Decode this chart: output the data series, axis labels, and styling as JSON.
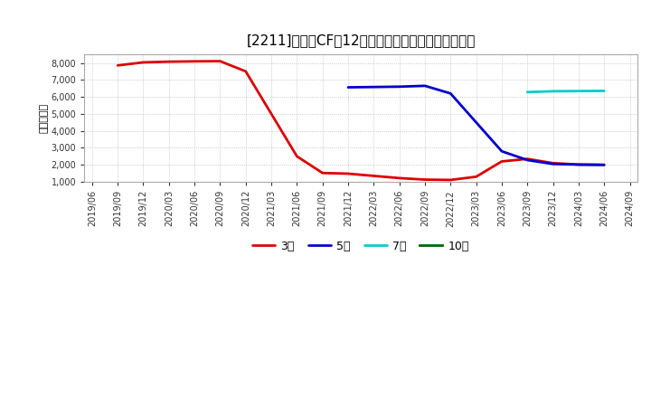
{
  "title": "[2211]　投賄CFの12か月移動合計の標準偶差の推移",
  "ylabel": "（百万円）",
  "background_color": "#ffffff",
  "grid_color": "#bbbbbb",
  "ylim": [
    1000,
    8500
  ],
  "yticks": [
    1000,
    2000,
    3000,
    4000,
    5000,
    6000,
    7000,
    8000
  ],
  "series": [
    {
      "name": "3年",
      "color": "#dd0000",
      "points": [
        [
          "2019/09",
          7850
        ],
        [
          "2019/12",
          8030
        ],
        [
          "2020/03",
          8070
        ],
        [
          "2020/06",
          8090
        ],
        [
          "2020/09",
          8100
        ],
        [
          "2020/12",
          7500
        ],
        [
          "2021/03",
          5000
        ],
        [
          "2021/06",
          2500
        ],
        [
          "2021/09",
          1520
        ],
        [
          "2021/12",
          1480
        ],
        [
          "2022/03",
          1350
        ],
        [
          "2022/06",
          1220
        ],
        [
          "2022/09",
          1130
        ],
        [
          "2022/12",
          1110
        ],
        [
          "2023/03",
          1300
        ],
        [
          "2023/06",
          2200
        ],
        [
          "2023/09",
          2350
        ],
        [
          "2023/12",
          2100
        ],
        [
          "2024/03",
          2020
        ],
        [
          "2024/06",
          2000
        ]
      ]
    },
    {
      "name": "5年",
      "color": "#0000cc",
      "points": [
        [
          "2021/12",
          6560
        ],
        [
          "2022/03",
          6580
        ],
        [
          "2022/06",
          6600
        ],
        [
          "2022/09",
          6650
        ],
        [
          "2022/12",
          6200
        ],
        [
          "2023/03",
          4500
        ],
        [
          "2023/06",
          2800
        ],
        [
          "2023/09",
          2280
        ],
        [
          "2023/12",
          2050
        ],
        [
          "2024/03",
          2010
        ],
        [
          "2024/06",
          2000
        ]
      ]
    },
    {
      "name": "7年",
      "color": "#00cccc",
      "points": [
        [
          "2023/09",
          6280
        ],
        [
          "2023/12",
          6330
        ],
        [
          "2024/03",
          6340
        ],
        [
          "2024/06",
          6350
        ]
      ]
    },
    {
      "name": "10年",
      "color": "#006600",
      "points": []
    }
  ],
  "x_labels": [
    "2019/06",
    "2019/09",
    "2019/12",
    "2020/03",
    "2020/06",
    "2020/09",
    "2020/12",
    "2021/03",
    "2021/06",
    "2021/09",
    "2021/12",
    "2022/03",
    "2022/06",
    "2022/09",
    "2022/12",
    "2023/03",
    "2023/06",
    "2023/09",
    "2023/12",
    "2024/03",
    "2024/06",
    "2024/09"
  ]
}
